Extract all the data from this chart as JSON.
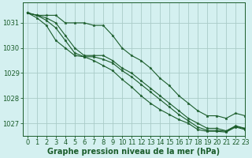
{
  "title": "Graphe pression niveau de la mer (hPa)",
  "background_color": "#d4f0f0",
  "grid_color": "#aaccc8",
  "line_color": "#1a5c2a",
  "xlim": [
    -0.5,
    23
  ],
  "ylim": [
    1026.5,
    1031.8
  ],
  "yticks": [
    1027,
    1028,
    1029,
    1030,
    1031
  ],
  "xticks": [
    0,
    1,
    2,
    3,
    4,
    5,
    6,
    7,
    8,
    9,
    10,
    11,
    12,
    13,
    14,
    15,
    16,
    17,
    18,
    19,
    20,
    21,
    22,
    23
  ],
  "lines": [
    [
      1031.4,
      1031.3,
      1031.3,
      1031.3,
      1031.0,
      1031.0,
      1031.0,
      1030.9,
      1030.9,
      1030.5,
      1030.0,
      1029.7,
      1029.5,
      1029.2,
      1028.8,
      1028.5,
      1028.1,
      1027.8,
      1027.5,
      1027.3,
      1027.3,
      1027.2,
      1027.4,
      1027.3
    ],
    [
      1031.4,
      1031.3,
      1031.2,
      1031.0,
      1030.5,
      1030.0,
      1029.7,
      1029.7,
      1029.7,
      1029.5,
      1029.2,
      1029.0,
      1028.7,
      1028.4,
      1028.1,
      1027.8,
      1027.5,
      1027.2,
      1027.0,
      1026.8,
      1026.8,
      1026.7,
      1026.9,
      1026.8
    ],
    [
      1031.4,
      1031.3,
      1031.1,
      1030.8,
      1030.3,
      1029.8,
      1029.65,
      1029.65,
      1029.55,
      1029.4,
      1029.1,
      1028.85,
      1028.55,
      1028.25,
      1027.95,
      1027.65,
      1027.35,
      1027.1,
      1026.85,
      1026.72,
      1026.72,
      1026.68,
      1026.88,
      1026.78
    ],
    [
      1031.4,
      1031.2,
      1030.9,
      1030.3,
      1030.0,
      1029.7,
      1029.65,
      1029.5,
      1029.3,
      1029.1,
      1028.75,
      1028.45,
      1028.1,
      1027.8,
      1027.55,
      1027.35,
      1027.15,
      1027.0,
      1026.75,
      1026.68,
      1026.68,
      1026.65,
      1026.85,
      1026.75
    ]
  ],
  "title_fontsize": 7,
  "tick_fontsize": 6,
  "linewidth": 0.8,
  "markersize": 2.5
}
